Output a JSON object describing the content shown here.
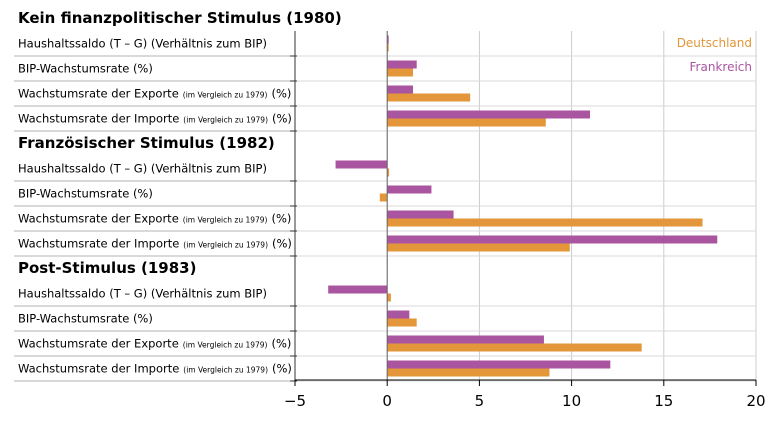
{
  "chart_data": {
    "type": "bar",
    "orientation": "horizontal",
    "xlim": [
      -5,
      20
    ],
    "xticks": [
      -5,
      0,
      5,
      10,
      15,
      20
    ],
    "xtick_labels": [
      "−5",
      "0",
      "5",
      "10",
      "15",
      "20"
    ],
    "grid": true,
    "legend_position": "top-right",
    "series": [
      {
        "name": "Deutschland",
        "color": "#e3963a"
      },
      {
        "name": "Frankreich",
        "color": "#a9559f"
      }
    ],
    "groups": [
      {
        "title": "Kein finanzpolitischer Stimulus (1980)",
        "rows": [
          {
            "label": "Haushaltssaldo (T – G) (Verhältnis zum BIP)",
            "note": "",
            "suffix": "",
            "Deutschland": 0.05,
            "Frankreich": 0.05
          },
          {
            "label": "BIP-Wachstumsrate (%)",
            "note": "",
            "suffix": "",
            "Deutschland": 1.4,
            "Frankreich": 1.6
          },
          {
            "label": "Wachstumsrate der Exporte",
            "note": "(im Vergleich zu 1979)",
            "suffix": "(%)",
            "Deutschland": 4.5,
            "Frankreich": 1.4
          },
          {
            "label": "Wachstumsrate der Importe",
            "note": "(im Vergleich zu 1979)",
            "suffix": "(%)",
            "Deutschland": 8.6,
            "Frankreich": 11.0
          }
        ]
      },
      {
        "title": "Französischer Stimulus (1982)",
        "rows": [
          {
            "label": "Haushaltssaldo (T – G) (Verhältnis zum BIP)",
            "note": "",
            "suffix": "",
            "Deutschland": 0.1,
            "Frankreich": -2.8
          },
          {
            "label": "BIP-Wachstumsrate (%)",
            "note": "",
            "suffix": "",
            "Deutschland": -0.4,
            "Frankreich": 2.4
          },
          {
            "label": "Wachstumsrate der Exporte",
            "note": "(im Vergleich zu 1979)",
            "suffix": "(%)",
            "Deutschland": 17.1,
            "Frankreich": 3.6
          },
          {
            "label": "Wachstumsrate der Importe",
            "note": "(im Vergleich zu 1979)",
            "suffix": "(%)",
            "Deutschland": 9.9,
            "Frankreich": 17.9
          }
        ]
      },
      {
        "title": "Post-Stimulus (1983)",
        "rows": [
          {
            "label": "Haushaltssaldo (T – G) (Verhältnis zum BIP)",
            "note": "",
            "suffix": "",
            "Deutschland": 0.2,
            "Frankreich": -3.2
          },
          {
            "label": "BIP-Wachstumsrate (%)",
            "note": "",
            "suffix": "",
            "Deutschland": 1.6,
            "Frankreich": 1.2
          },
          {
            "label": "Wachstumsrate der Exporte",
            "note": "(im Vergleich zu 1979)",
            "suffix": "(%)",
            "Deutschland": 13.8,
            "Frankreich": 8.5
          },
          {
            "label": "Wachstumsrate der Importe",
            "note": "(im Vergleich zu 1979)",
            "suffix": "(%)",
            "Deutschland": 8.8,
            "Frankreich": 12.1
          }
        ]
      }
    ]
  }
}
